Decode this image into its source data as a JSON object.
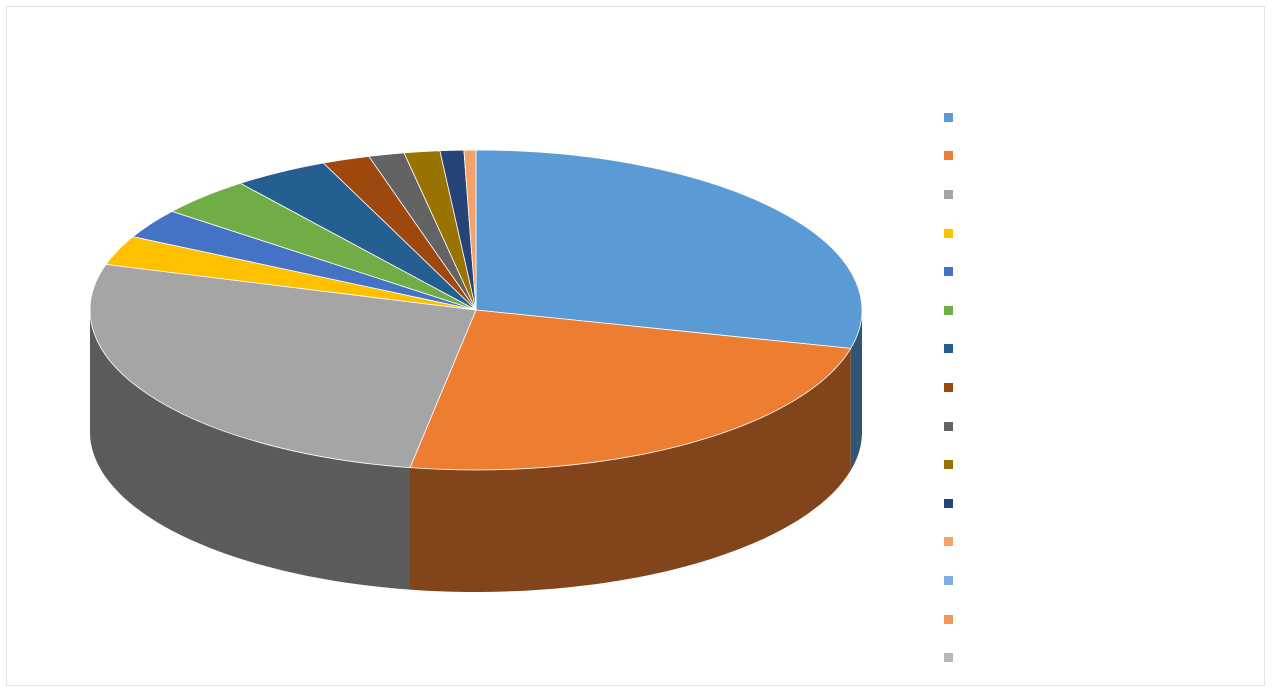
{
  "chart_data": {
    "type": "pie",
    "style": "3d",
    "title": "",
    "legend_position": "right",
    "categories": [
      "",
      "",
      "",
      "",
      "",
      "",
      "",
      "",
      "",
      "",
      "",
      "",
      "",
      "",
      ""
    ],
    "values": [
      29,
      24,
      27,
      3,
      3,
      4,
      4,
      2,
      1.5,
      1.5,
      1,
      0.5,
      0,
      0,
      0
    ],
    "data_labels": [
      "",
      "",
      "",
      "",
      "",
      "",
      "",
      "",
      "",
      "",
      "",
      "",
      "",
      "",
      ""
    ],
    "colors": [
      "#5b9bd5",
      "#ed7d31",
      "#a5a5a5",
      "#ffc000",
      "#4472c4",
      "#70ad47",
      "#255e91",
      "#9e480e",
      "#636363",
      "#997300",
      "#264478",
      "#f4a26a",
      "#7cafdd",
      "#f1975a",
      "#b7b7b7"
    ]
  }
}
